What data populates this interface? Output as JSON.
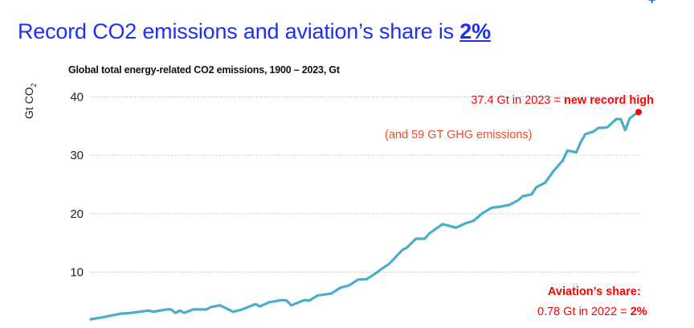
{
  "slide": {
    "title_main": "Record CO2 emissions and aviation’s share is ",
    "title_highlight": "2%",
    "plus_glyph": "+"
  },
  "annotations": {
    "record_prefix": "37.4 Gt in 2023 = ",
    "record_bold": "new record high",
    "ghg": "(and 59 GT GHG emissions)",
    "aviation_heading": "Aviation’s share:",
    "aviation_prefix": "0.78 Gt in 2022 = ",
    "aviation_bold": "2%"
  },
  "colors": {
    "title": "#1f2ff0",
    "line": "#4aaec8",
    "highlight": "#ff0000",
    "ghg": "#f04a2a",
    "grid": "#bbbbbb"
  },
  "chart_data": {
    "type": "line",
    "title": "Global total energy-related CO2 emissions, 1900 – 2023, Gt",
    "ylabel": "Gt CO",
    "ylabel_sub": "2",
    "xlabel": "",
    "ylim": [
      0,
      40
    ],
    "xlim": [
      1900,
      2023
    ],
    "yticks": [
      10,
      20,
      30,
      40
    ],
    "grid": true,
    "grid_style": "dotted horizontal",
    "highlight_point": {
      "x": 2023,
      "y": 37.4
    },
    "x": [
      1900,
      1903,
      1905,
      1907,
      1908,
      1911,
      1913,
      1914,
      1917,
      1918,
      1919,
      1920,
      1921,
      1923,
      1926,
      1927,
      1929,
      1932,
      1934,
      1937,
      1938,
      1940,
      1943,
      1944,
      1945,
      1948,
      1949,
      1951,
      1954,
      1956,
      1958,
      1960,
      1962,
      1964,
      1966,
      1967,
      1970,
      1971,
      1973,
      1975,
      1976,
      1979,
      1982,
      1984,
      1986,
      1988,
      1990,
      1992,
      1994,
      1996,
      1997,
      1999,
      2000,
      2002,
      2004,
      2006,
      2007,
      2009,
      2010,
      2011,
      2013,
      2014,
      2015,
      2016,
      2018,
      2019,
      2020,
      2021,
      2022,
      2023
    ],
    "y": [
      1.9,
      2.3,
      2.6,
      2.9,
      2.9,
      3.2,
      3.4,
      3.2,
      3.6,
      3.6,
      3.0,
      3.4,
      3.0,
      3.6,
      3.6,
      4.0,
      4.3,
      3.2,
      3.6,
      4.5,
      4.1,
      4.8,
      5.2,
      5.1,
      4.3,
      5.2,
      5.1,
      6.0,
      6.3,
      7.3,
      7.7,
      8.7,
      8.8,
      9.8,
      10.9,
      11.4,
      13.8,
      14.2,
      15.7,
      15.7,
      16.6,
      18.2,
      17.6,
      18.3,
      18.8,
      20.1,
      21.0,
      21.2,
      21.5,
      22.3,
      23.0,
      23.3,
      24.5,
      25.3,
      27.4,
      29.1,
      30.8,
      30.5,
      32.2,
      33.6,
      34.1,
      34.7,
      34.7,
      34.8,
      36.2,
      36.2,
      34.3,
      36.3,
      36.9,
      37.4
    ]
  }
}
